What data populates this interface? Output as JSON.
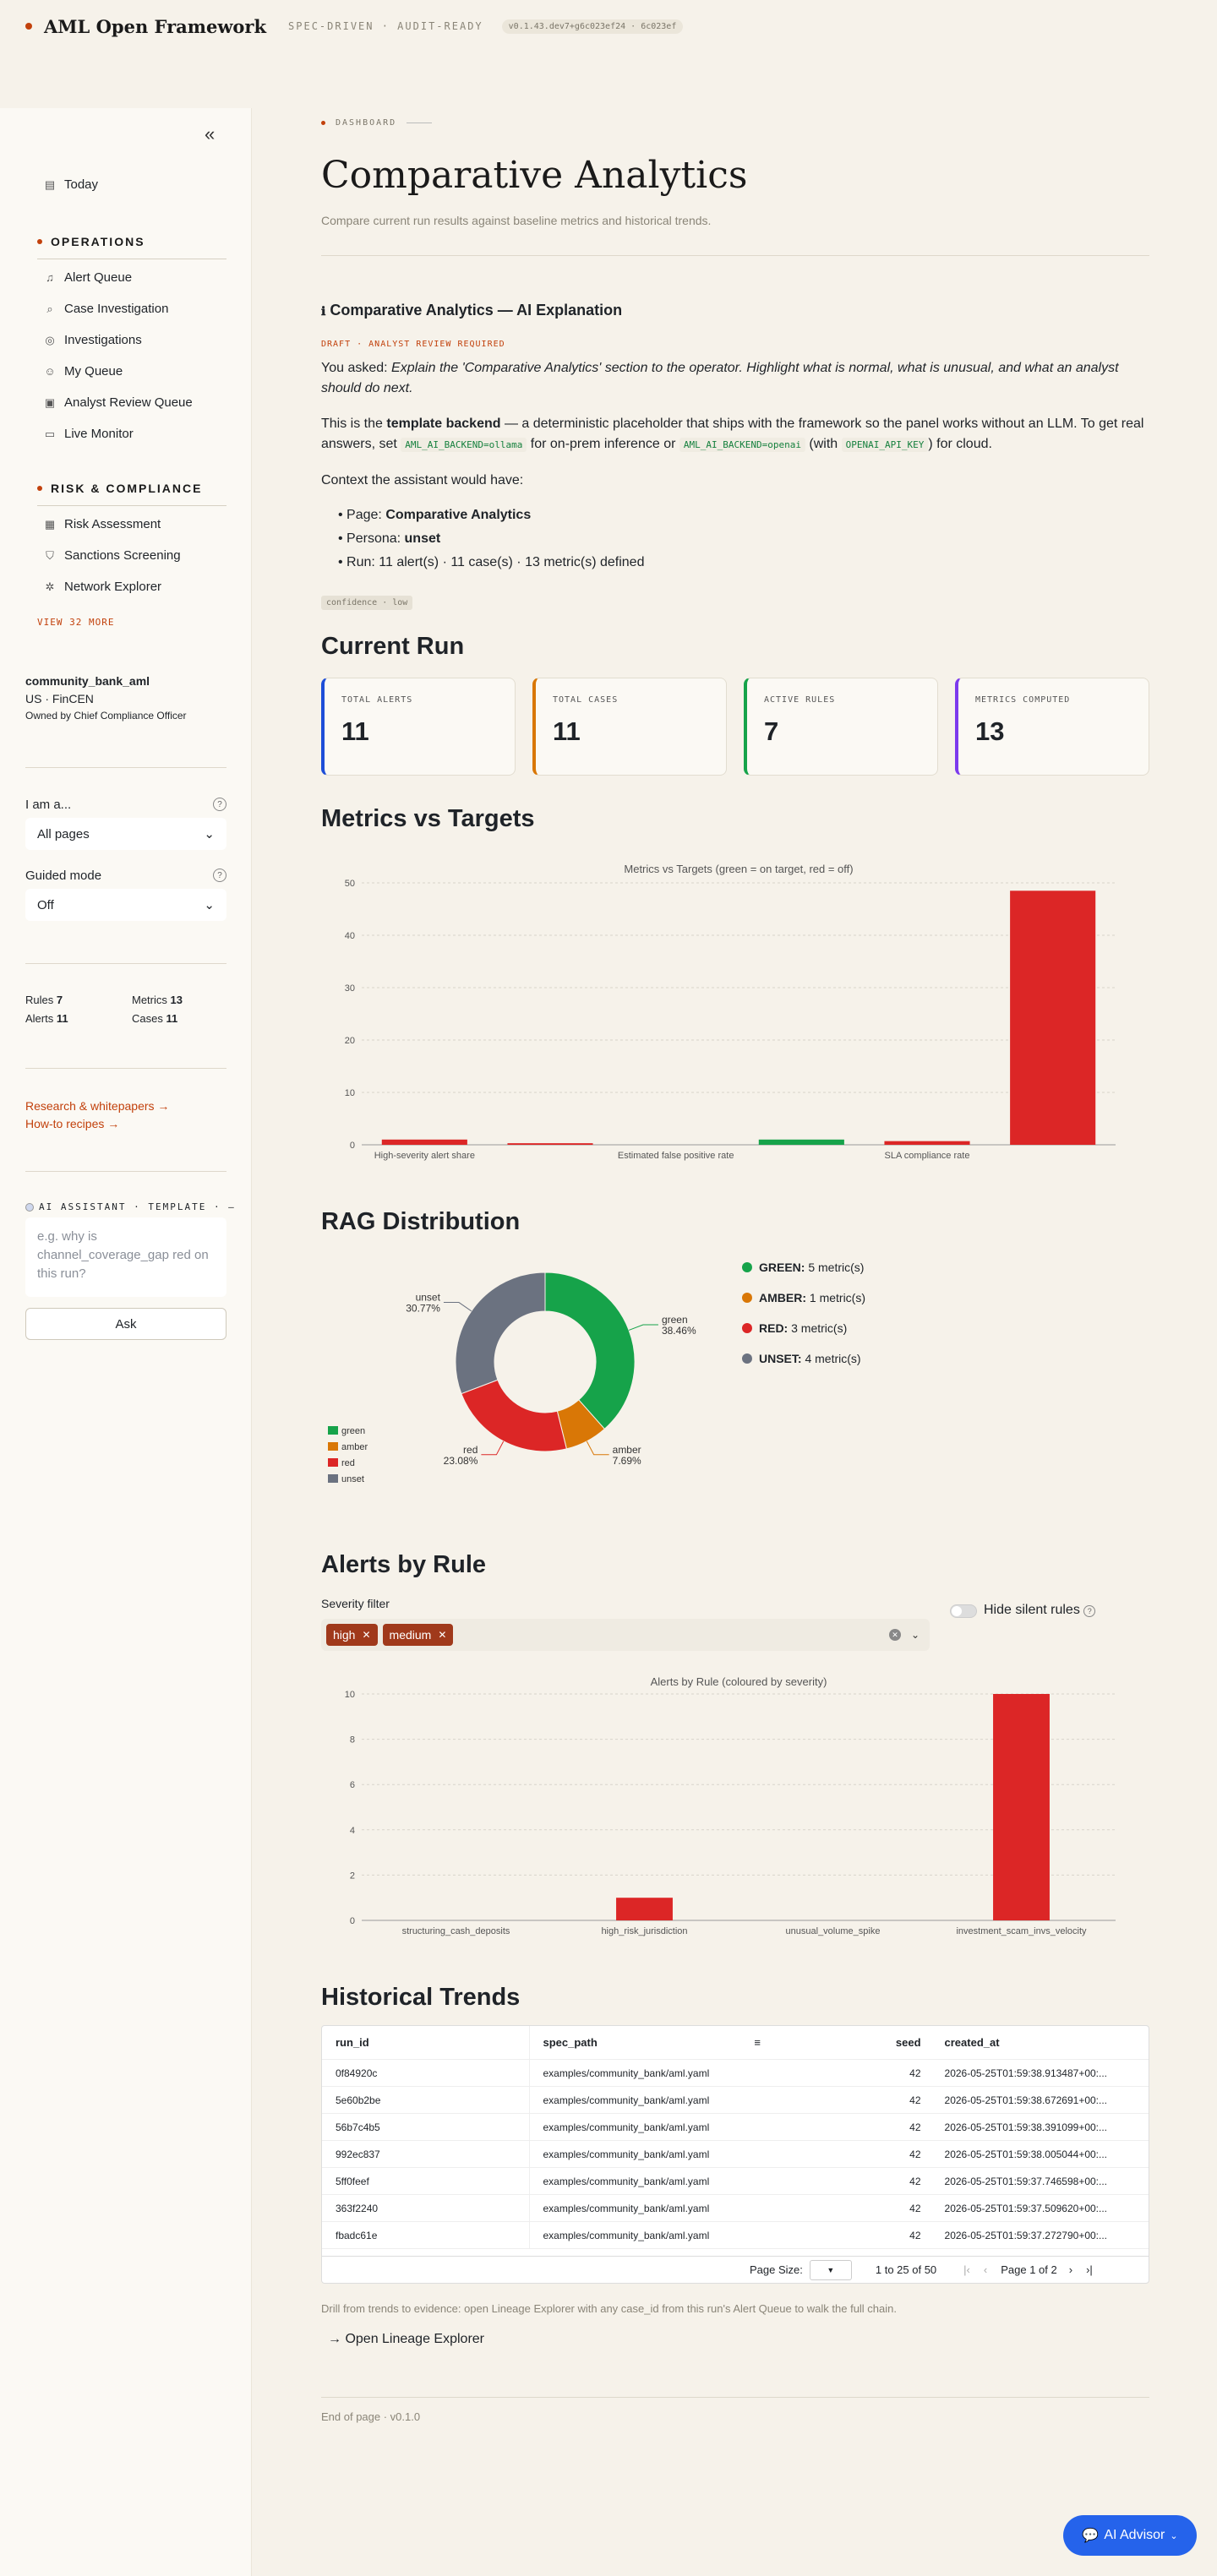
{
  "topbar": {
    "brand": "AML Open Framework",
    "tagline": "SPEC-DRIVEN · AUDIT-READY",
    "version": "v0.1.43.dev7+g6c023ef24 · 6c023ef"
  },
  "sidebar": {
    "today": "Today",
    "sections": [
      {
        "title": "OPERATIONS",
        "items": [
          "Alert Queue",
          "Case Investigation",
          "Investigations",
          "My Queue",
          "Analyst Review Queue",
          "Live Monitor"
        ]
      },
      {
        "title": "RISK & COMPLIANCE",
        "items": [
          "Risk Assessment",
          "Sanctions Screening",
          "Network Explorer"
        ]
      }
    ],
    "view_more": "VIEW 32 MORE",
    "org": {
      "name": "community_bank_aml",
      "juris": "US · FinCEN",
      "owner": "Owned by Chief Compliance Officer"
    },
    "iam": {
      "label": "I am a...",
      "value": "All pages"
    },
    "guided": {
      "label": "Guided mode",
      "value": "Off"
    },
    "stats": {
      "rules_label": "Rules",
      "rules": "7",
      "metrics_label": "Metrics",
      "metrics": "13",
      "alerts_label": "Alerts",
      "alerts": "11",
      "cases_label": "Cases",
      "cases": "11"
    },
    "links": [
      "Research & whitepapers →",
      "How-to recipes →"
    ],
    "ai": {
      "label": "AI ASSISTANT · TEMPLATE · —",
      "placeholder": "e.g. why is channel_coverage_gap red on this run?",
      "ask": "Ask"
    }
  },
  "main": {
    "crumb": "DASHBOARD",
    "title": "Comparative Analytics",
    "subtitle": "Compare current run results against baseline metrics and historical trends.",
    "ai": {
      "heading": "Comparative Analytics — AI Explanation",
      "draft": "DRAFT · ANALYST REVIEW REQUIRED",
      "asked_prefix": "You asked: ",
      "asked": "Explain the 'Comparative Analytics' section to the operator. Highlight what is normal, what is unusual, and what an analyst should do next.",
      "p1a": "This is the ",
      "p1b": "template backend",
      "p1c": " — a deterministic placeholder that ships with the framework so the panel works without an LLM. To get real answers, set ",
      "code1": "AML_AI_BACKEND=ollama",
      "p1d": " for on-prem inference or ",
      "code2": "AML_AI_BACKEND=openai",
      "p1e": " (with ",
      "code3": "OPENAI_API_KEY",
      "p1f": ") for cloud.",
      "context": "Context the assistant would have:",
      "b1a": "Page: ",
      "b1b": "Comparative Analytics",
      "b2a": "Persona: ",
      "b2b": "unset",
      "b3": "Run: 11 alert(s) · 11 case(s) · 13 metric(s) defined",
      "confidence": "confidence · low"
    },
    "current_run": {
      "heading": "Current Run",
      "cards": [
        {
          "label": "TOTAL ALERTS",
          "value": "11",
          "color": "#1d4ed8"
        },
        {
          "label": "TOTAL CASES",
          "value": "11",
          "color": "#d97706"
        },
        {
          "label": "ACTIVE RULES",
          "value": "7",
          "color": "#16a34a"
        },
        {
          "label": "METRICS COMPUTED",
          "value": "13",
          "color": "#7c3aed"
        }
      ]
    },
    "metrics_heading": "Metrics vs Targets",
    "rag_heading": "RAG Distribution",
    "rag_legend": [
      {
        "name": "GREEN:",
        "text": "5 metric(s)",
        "color": "#16a34a"
      },
      {
        "name": "AMBER:",
        "text": "1 metric(s)",
        "color": "#d97706"
      },
      {
        "name": "RED:",
        "text": "3 metric(s)",
        "color": "#dc2626"
      },
      {
        "name": "UNSET:",
        "text": "4 metric(s)",
        "color": "#6b7280"
      }
    ],
    "alerts_heading": "Alerts by Rule",
    "severity": {
      "label": "Severity filter",
      "chips": [
        "high",
        "medium"
      ],
      "hide_silent": "Hide silent rules"
    },
    "hist_heading": "Historical Trends",
    "table": {
      "columns": [
        "run_id",
        "spec_path",
        "seed",
        "created_at"
      ],
      "rows": [
        [
          "0f84920c",
          "examples/community_bank/aml.yaml",
          "42",
          "2026-05-25T01:59:38.913487+00:..."
        ],
        [
          "5e60b2be",
          "examples/community_bank/aml.yaml",
          "42",
          "2026-05-25T01:59:38.672691+00:..."
        ],
        [
          "56b7c4b5",
          "examples/community_bank/aml.yaml",
          "42",
          "2026-05-25T01:59:38.391099+00:..."
        ],
        [
          "992ec837",
          "examples/community_bank/aml.yaml",
          "42",
          "2026-05-25T01:59:38.005044+00:..."
        ],
        [
          "5ff0feef",
          "examples/community_bank/aml.yaml",
          "42",
          "2026-05-25T01:59:37.746598+00:..."
        ],
        [
          "363f2240",
          "examples/community_bank/aml.yaml",
          "42",
          "2026-05-25T01:59:37.509620+00:..."
        ],
        [
          "fbadc61e",
          "examples/community_bank/aml.yaml",
          "42",
          "2026-05-25T01:59:37.272790+00:..."
        ]
      ],
      "page_size_label": "Page Size:",
      "range": "1 to 25 of 50",
      "page": "Page 1 of 2"
    },
    "drill": "Drill from trends to evidence: open Lineage Explorer with any case_id from this run's Alert Queue to walk the full chain.",
    "lineage_btn": "→ Open Lineage Explorer",
    "footer": "End of page · v0.1.0",
    "advisor": "AI Advisor"
  },
  "chart_data": [
    {
      "type": "bar",
      "title": "Metrics vs Targets (green = on target, red = off)",
      "categories": [
        "High-severity alert share",
        "",
        "Estimated false positive rate",
        "",
        "SLA compliance rate",
        ""
      ],
      "values": [
        1.0,
        0.3,
        0.0,
        1.0,
        0.7,
        48.5
      ],
      "colors": [
        "#dc2626",
        "#dc2626",
        "#dc2626",
        "#16a34a",
        "#dc2626",
        "#dc2626"
      ],
      "ylim": [
        0,
        50
      ],
      "yticks": [
        0,
        10,
        20,
        30,
        40,
        50
      ],
      "grid": true
    },
    {
      "type": "pie",
      "labels": [
        "green",
        "amber",
        "red",
        "unset"
      ],
      "values": [
        38.46,
        7.69,
        23.08,
        30.77
      ],
      "value_labels": [
        "38.46%",
        "7.69%",
        "23.08%",
        "30.77%"
      ],
      "colors": [
        "#16a34a",
        "#d97706",
        "#dc2626",
        "#6b7280"
      ],
      "legend": "bottom-left"
    },
    {
      "type": "bar",
      "title": "Alerts by Rule (coloured by severity)",
      "categories": [
        "structuring_cash_deposits",
        "high_risk_jurisdiction",
        "unusual_volume_spike",
        "investment_scam_invs_velocity"
      ],
      "values": [
        0,
        1,
        0,
        10
      ],
      "colors": [
        "#dc2626",
        "#dc2626",
        "#dc2626",
        "#dc2626"
      ],
      "ylim": [
        0,
        10
      ],
      "yticks": [
        0,
        2,
        4,
        6,
        8,
        10
      ],
      "grid": true
    }
  ]
}
